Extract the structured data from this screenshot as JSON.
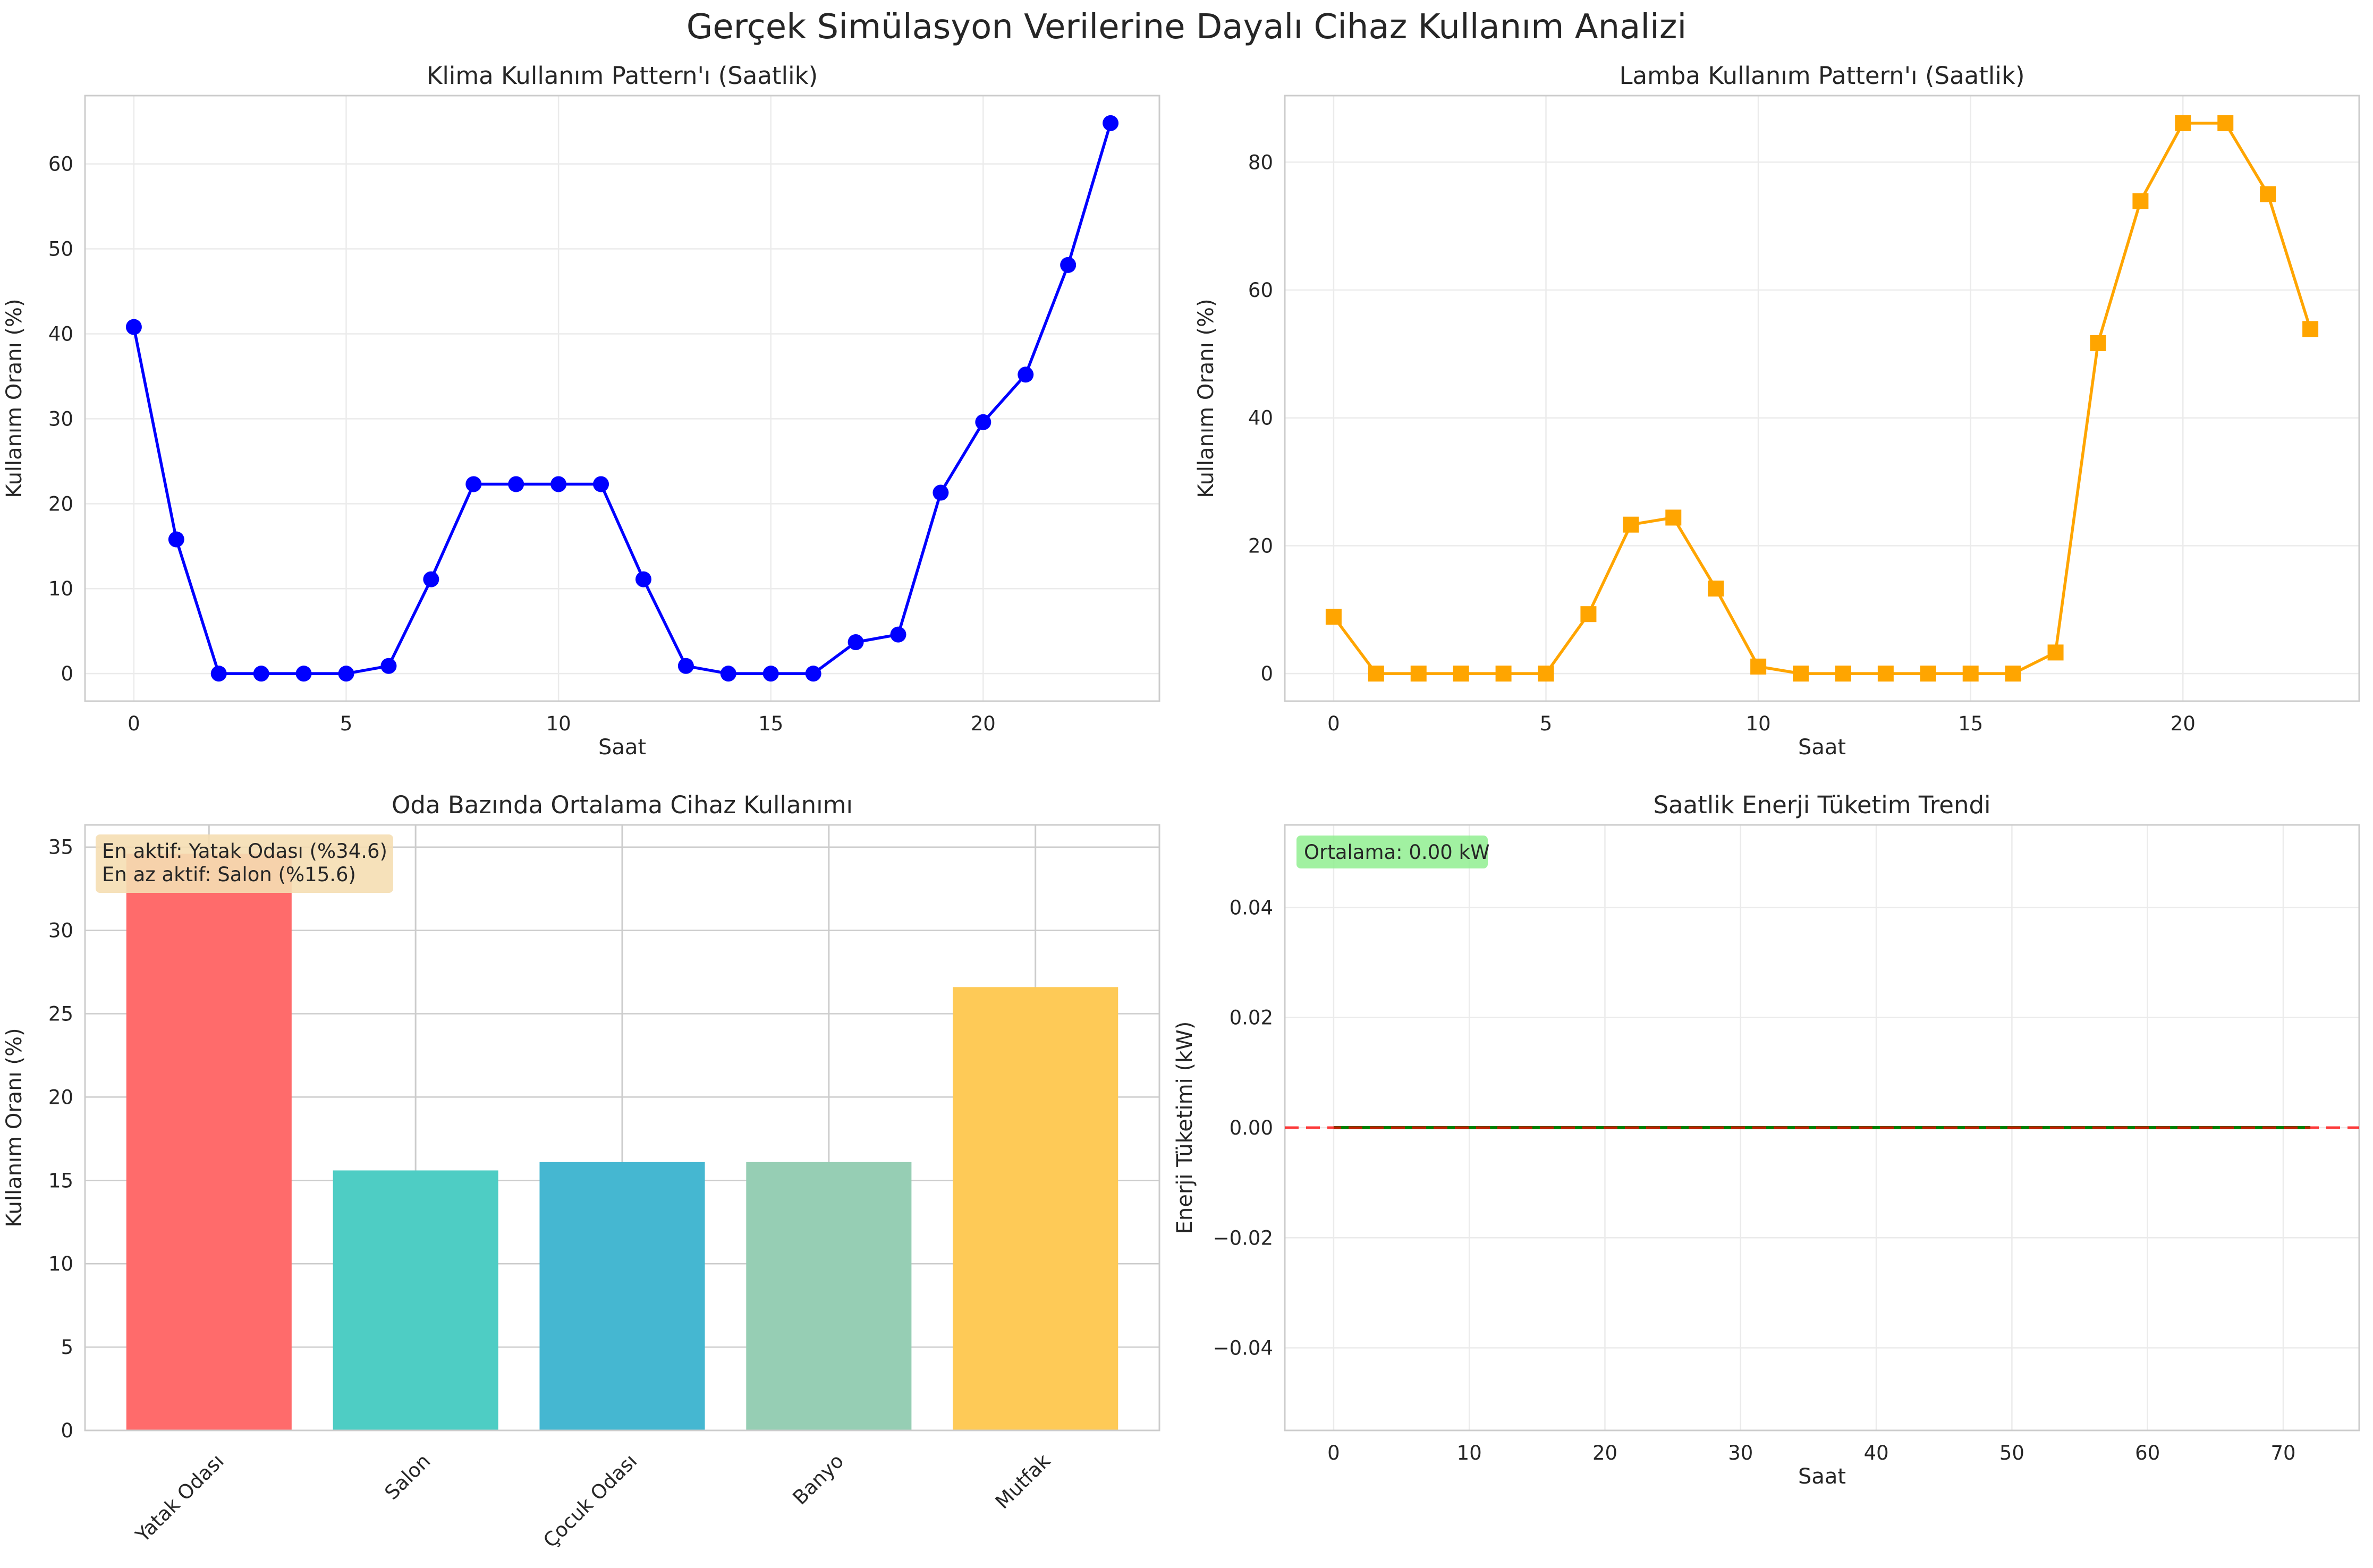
{
  "suptitle": "Gerçek Simülasyon Verilerine Dayalı Cihaz Kullanım Analizi",
  "chart_data": [
    {
      "type": "line",
      "title": "Klima Kullanım Pattern'ı (Saatlik)",
      "xlabel": "Saat",
      "ylabel": "Kullanım Oranı (%)",
      "x": [
        0,
        1,
        2,
        3,
        4,
        5,
        6,
        7,
        8,
        9,
        10,
        11,
        12,
        13,
        14,
        15,
        16,
        17,
        18,
        19,
        20,
        21,
        22,
        23
      ],
      "values": [
        40.8,
        15.8,
        0,
        0,
        0,
        0,
        0.9,
        11.1,
        22.3,
        22.3,
        22.3,
        22.3,
        11.1,
        0.9,
        0,
        0,
        0,
        3.7,
        4.6,
        21.3,
        29.6,
        35.2,
        48.1,
        64.8
      ],
      "xlim": [
        -1.15,
        24.15
      ],
      "ylim": [
        -3.24,
        68.04
      ],
      "xticks": [
        0,
        5,
        10,
        15,
        20
      ],
      "yticks": [
        0,
        10,
        20,
        30,
        40,
        50,
        60
      ],
      "marker": "circle",
      "color": "#0000ff",
      "grid": true
    },
    {
      "type": "line",
      "title": "Lamba Kullanım Pattern'ı (Saatlik)",
      "xlabel": "Saat",
      "ylabel": "Kullanım Oranı (%)",
      "x": [
        0,
        1,
        2,
        3,
        4,
        5,
        6,
        7,
        8,
        9,
        10,
        11,
        12,
        13,
        14,
        15,
        16,
        17,
        18,
        19,
        20,
        21,
        22,
        23
      ],
      "values": [
        8.9,
        0,
        0,
        0,
        0,
        0,
        9.3,
        23.3,
        24.4,
        13.3,
        1.1,
        0,
        0,
        0,
        0,
        0,
        0,
        3.3,
        51.7,
        73.9,
        86.1,
        86.1,
        75.0,
        53.9
      ],
      "xlim": [
        -1.15,
        24.15
      ],
      "ylim": [
        -4.31,
        90.41
      ],
      "xticks": [
        0,
        5,
        10,
        15,
        20
      ],
      "yticks": [
        0,
        20,
        40,
        60,
        80
      ],
      "marker": "square",
      "color": "#ffa500",
      "grid": true
    },
    {
      "type": "bar",
      "title": "Oda Bazında Ortalama Cihaz Kullanımı",
      "ylabel": "Kullanım Oranı (%)",
      "categories": [
        "Yatak Odası",
        "Salon",
        "Çocuk Odası",
        "Banyo",
        "Mutfak"
      ],
      "values": [
        34.6,
        15.6,
        16.1,
        16.1,
        26.6
      ],
      "colors": [
        "#ff6b6b",
        "#4ecdc4",
        "#45b7d1",
        "#96ceb4",
        "#feca57"
      ],
      "ylim": [
        0,
        36.33
      ],
      "yticks": [
        0,
        5,
        10,
        15,
        20,
        25,
        30,
        35
      ],
      "annotation": [
        "En aktif: Yatak Odası (%34.6)",
        "En az aktif: Salon (%15.6)"
      ],
      "grid": true
    },
    {
      "type": "line",
      "title": "Saatlik Enerji Tüketim Trendi",
      "xlabel": "Saat",
      "ylabel": "Enerji Tüketimi (kW)",
      "x_range": [
        0,
        72
      ],
      "value": 0.0,
      "mean": 0.0,
      "xlim": [
        -3.6,
        75.6
      ],
      "ylim": [
        -0.055,
        0.055
      ],
      "xticks": [
        0,
        10,
        20,
        30,
        40,
        50,
        60,
        70
      ],
      "yticks": [
        -0.04,
        -0.02,
        0.0,
        0.02,
        0.04
      ],
      "ytick_labels": [
        "−0.04",
        "−0.02",
        "0.00",
        "0.02",
        "0.04"
      ],
      "color": "#008000",
      "mean_line_color": "#ff0000",
      "annotation": "Ortalama: 0.00 kW",
      "grid": true
    }
  ]
}
